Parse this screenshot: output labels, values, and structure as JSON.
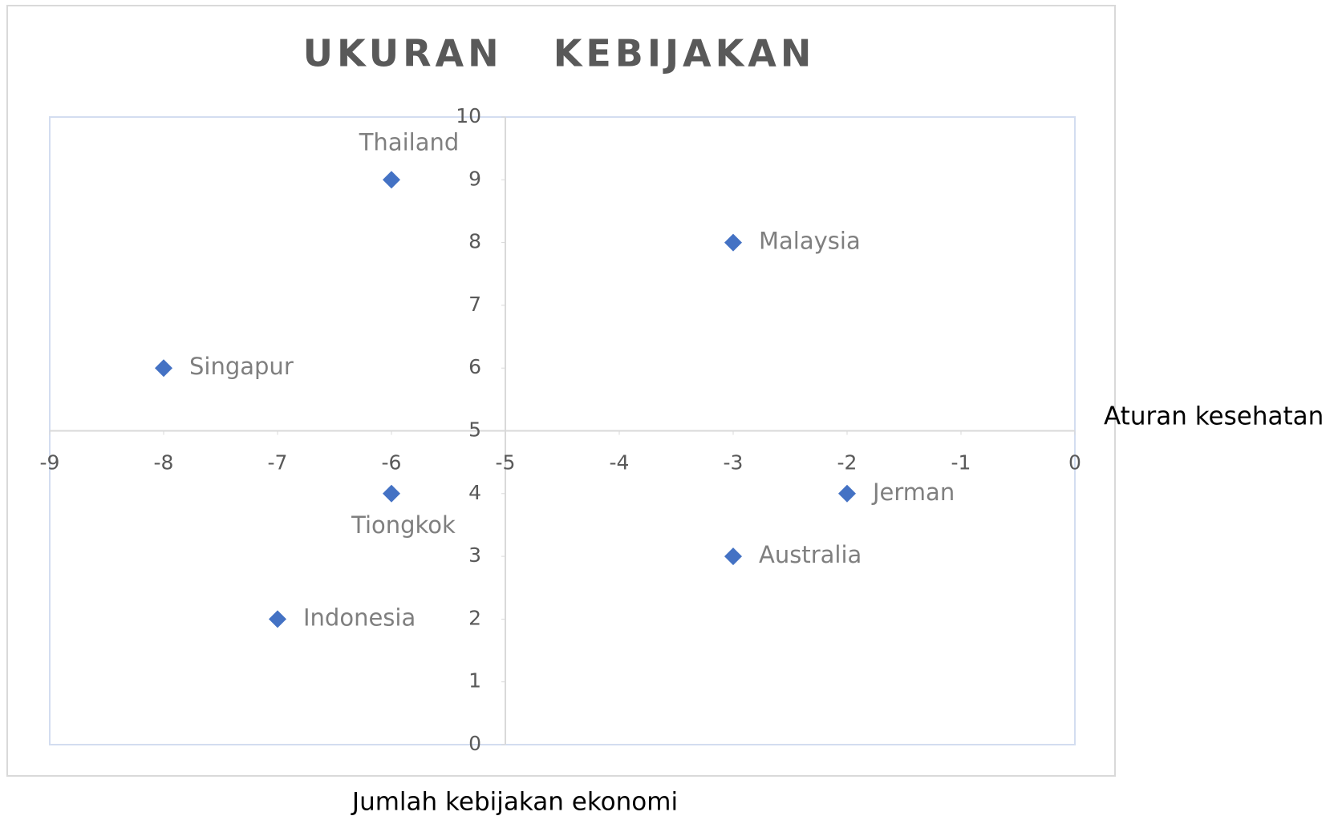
{
  "chart_data": {
    "type": "scatter",
    "title": "UKURAN   KEBIJAKAN",
    "x_label": "Jumlah kebijakan ekonomi",
    "y_label": "Aturan kesehatan",
    "x": [
      -6,
      -3,
      -8,
      -6,
      -2,
      -3,
      -7
    ],
    "y": [
      9,
      8,
      6,
      4,
      4,
      3,
      2
    ],
    "point_labels": [
      "Thailand",
      "Malaysia",
      "Singapur",
      "Tiongkok",
      "Jerman",
      "Australia",
      "Indonesia"
    ],
    "label_positions": [
      "above",
      "right",
      "right",
      "below",
      "right",
      "right",
      "right"
    ],
    "color": "#4472c4",
    "xlim": [
      -9,
      0
    ],
    "xticks": [
      -9,
      -8,
      -7,
      -6,
      -5,
      -4,
      -3,
      -2,
      -1,
      0
    ],
    "ylim": [
      0,
      10
    ],
    "yticks": [
      0,
      1,
      2,
      3,
      4,
      5,
      6,
      7,
      8,
      9,
      10
    ],
    "x_axis_crosses_y": 5,
    "y_axis_crosses_x": -5
  }
}
